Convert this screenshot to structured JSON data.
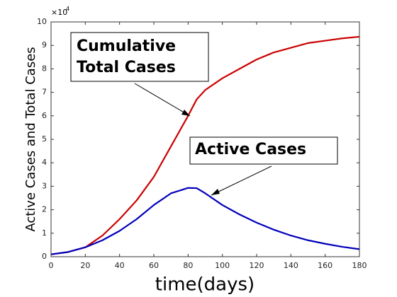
{
  "chart_data": {
    "type": "line",
    "x_label": "time(days)",
    "y_label": "Active Cases and Total Cases",
    "y_scale_base": "×10",
    "y_scale_exponent": "4",
    "x": [
      0,
      10,
      20,
      30,
      40,
      50,
      60,
      70,
      80,
      85,
      90,
      100,
      110,
      120,
      130,
      140,
      150,
      160,
      170,
      180
    ],
    "series": [
      {
        "name": "Cumulative Total Cases",
        "color": "#cc0000",
        "values": [
          0.1,
          0.2,
          0.4,
          0.9,
          1.6,
          2.4,
          3.4,
          4.7,
          6.0,
          6.7,
          7.1,
          7.6,
          8.0,
          8.4,
          8.7,
          8.9,
          9.1,
          9.2,
          9.3,
          9.37
        ]
      },
      {
        "name": "Active Cases",
        "color": "#0000bb",
        "values": [
          0.1,
          0.2,
          0.4,
          0.7,
          1.1,
          1.6,
          2.2,
          2.7,
          2.93,
          2.92,
          2.7,
          2.2,
          1.8,
          1.45,
          1.15,
          0.9,
          0.7,
          0.55,
          0.42,
          0.32
        ]
      }
    ],
    "annotations": [
      {
        "lines": [
          "Cumulative",
          "Total Cases"
        ]
      },
      {
        "lines": [
          "Active Cases"
        ]
      }
    ],
    "xlim": [
      0,
      180
    ],
    "xticks": [
      0,
      20,
      40,
      60,
      80,
      100,
      120,
      140,
      160,
      180
    ],
    "ylim": [
      0,
      10
    ],
    "yticks": [
      0,
      1,
      2,
      3,
      4,
      5,
      6,
      7,
      8,
      9,
      10
    ]
  }
}
